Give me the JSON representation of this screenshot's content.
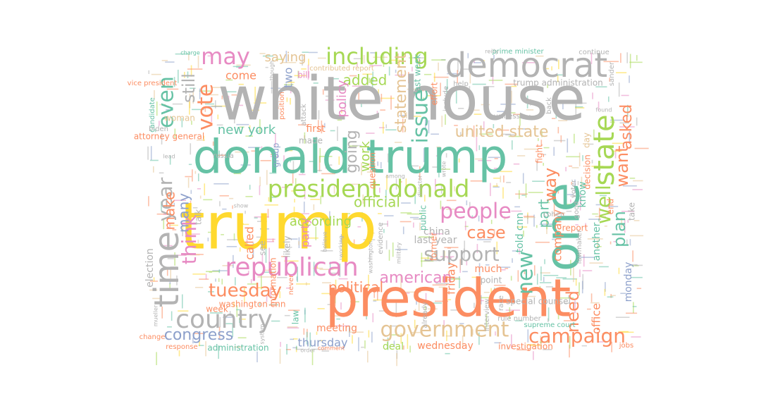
{
  "palette": {
    "green": "#66c2a5",
    "orange": "#fc8d62",
    "blue": "#8da0cb",
    "pink": "#e78ac3",
    "lime": "#a6d854",
    "yellow": "#ffd92f",
    "tan": "#e5c494",
    "gray": "#b3b3b3"
  },
  "words": [
    {
      "text": "white house",
      "color": "gray"
    },
    {
      "text": "donald trump",
      "color": "green"
    },
    {
      "text": "trump",
      "color": "yellow"
    },
    {
      "text": "president",
      "color": "orange"
    },
    {
      "text": "democrat",
      "color": "gray"
    },
    {
      "text": "one",
      "color": "green"
    },
    {
      "text": "president donald",
      "color": "lime"
    },
    {
      "text": "republican",
      "color": "pink"
    },
    {
      "text": "country",
      "color": "gray"
    },
    {
      "text": "time",
      "color": "gray"
    },
    {
      "text": "government",
      "color": "tan"
    },
    {
      "text": "campaign",
      "color": "orange"
    },
    {
      "text": "people",
      "color": "pink"
    },
    {
      "text": "state",
      "color": "lime"
    },
    {
      "text": "including",
      "color": "lime"
    },
    {
      "text": "may",
      "color": "pink"
    },
    {
      "text": "even",
      "color": "green"
    },
    {
      "text": "vote",
      "color": "orange"
    },
    {
      "text": "still",
      "color": "gray"
    },
    {
      "text": "think",
      "color": "pink"
    },
    {
      "text": "year",
      "color": "gray"
    },
    {
      "text": "make",
      "color": "orange"
    },
    {
      "text": "many",
      "color": "blue"
    },
    {
      "text": "tuesday",
      "color": "orange"
    },
    {
      "text": "congress",
      "color": "blue"
    },
    {
      "text": "support",
      "color": "gray"
    },
    {
      "text": "case",
      "color": "orange"
    },
    {
      "text": "american",
      "color": "pink"
    },
    {
      "text": "new",
      "color": "green"
    },
    {
      "text": "well",
      "color": "lime"
    },
    {
      "text": "want",
      "color": "orange"
    },
    {
      "text": "asked",
      "color": "orange"
    },
    {
      "text": "plan",
      "color": "green"
    },
    {
      "text": "united state",
      "color": "tan"
    },
    {
      "text": "issue",
      "color": "green"
    },
    {
      "text": "statement",
      "color": "tan"
    },
    {
      "text": "going",
      "color": "gray"
    },
    {
      "text": "work",
      "color": "lime"
    },
    {
      "text": "new york",
      "color": "green"
    },
    {
      "text": "saying",
      "color": "tan"
    },
    {
      "text": "added",
      "color": "lime"
    },
    {
      "text": "policy",
      "color": "pink"
    },
    {
      "text": "official",
      "color": "lime"
    },
    {
      "text": "according",
      "color": "lime"
    },
    {
      "text": "come",
      "color": "orange"
    },
    {
      "text": "two",
      "color": "blue"
    },
    {
      "text": "called",
      "color": "orange"
    },
    {
      "text": "party",
      "color": "pink"
    },
    {
      "text": "political",
      "color": "orange"
    },
    {
      "text": "thursday",
      "color": "blue"
    },
    {
      "text": "meeting",
      "color": "orange"
    },
    {
      "text": "deal",
      "color": "lime"
    },
    {
      "text": "wednesday",
      "color": "orange"
    },
    {
      "text": "administration",
      "color": "green"
    },
    {
      "text": "investigation",
      "color": "orange"
    },
    {
      "text": "way",
      "color": "orange"
    },
    {
      "text": "part",
      "color": "green"
    },
    {
      "text": "company",
      "color": "orange"
    },
    {
      "text": "told cnn",
      "color": "green"
    },
    {
      "text": "china",
      "color": "gray"
    },
    {
      "text": "last year",
      "color": "gray"
    },
    {
      "text": "friday",
      "color": "orange"
    },
    {
      "text": "need",
      "color": "orange"
    },
    {
      "text": "monday",
      "color": "blue"
    },
    {
      "text": "washington cnn",
      "color": "orange"
    },
    {
      "text": "election",
      "color": "gray"
    },
    {
      "text": "woman",
      "color": "tan"
    },
    {
      "text": "first",
      "color": "orange"
    },
    {
      "text": "made",
      "color": "gray"
    },
    {
      "text": "likely",
      "color": "gray"
    },
    {
      "text": "see",
      "color": "gray"
    },
    {
      "text": "week",
      "color": "orange"
    },
    {
      "text": "group",
      "color": "blue"
    },
    {
      "text": "trump administration",
      "color": "gray"
    },
    {
      "text": "continue",
      "color": "gray"
    },
    {
      "text": "prime minister",
      "color": "green"
    },
    {
      "text": "report",
      "color": "orange"
    },
    {
      "text": "decision",
      "color": "orange"
    },
    {
      "text": "special counsel",
      "color": "gray"
    },
    {
      "text": "office",
      "color": "orange"
    },
    {
      "text": "know",
      "color": "green"
    },
    {
      "text": "lawmaker",
      "color": "gray"
    },
    {
      "text": "another",
      "color": "green"
    },
    {
      "text": "day",
      "color": "tan"
    },
    {
      "text": "voter",
      "color": "gray"
    },
    {
      "text": "end",
      "color": "orange"
    },
    {
      "text": "take",
      "color": "gray"
    },
    {
      "text": "much",
      "color": "orange"
    },
    {
      "text": "point",
      "color": "gray"
    },
    {
      "text": "supreme court",
      "color": "green"
    },
    {
      "text": "rule number",
      "color": "gray"
    },
    {
      "text": "race",
      "color": "gray"
    },
    {
      "text": "attorney general",
      "color": "orange"
    },
    {
      "text": "biden",
      "color": "gray"
    },
    {
      "text": "candidate",
      "color": "green"
    },
    {
      "text": "talk",
      "color": "gray"
    },
    {
      "text": "last week",
      "color": "green"
    },
    {
      "text": "question",
      "color": "orange"
    },
    {
      "text": "effort",
      "color": "orange"
    },
    {
      "text": "business",
      "color": "gray"
    },
    {
      "text": "back",
      "color": "gray"
    },
    {
      "text": "cohen",
      "color": "gray"
    },
    {
      "text": "good",
      "color": "gray"
    },
    {
      "text": "bill",
      "color": "pink"
    },
    {
      "text": "include",
      "color": "gray"
    },
    {
      "text": "help",
      "color": "gray"
    },
    {
      "text": "found",
      "color": "gray"
    },
    {
      "text": "sander",
      "color": "gray"
    },
    {
      "text": "russia",
      "color": "gray"
    },
    {
      "text": "former",
      "color": "orange"
    },
    {
      "text": "fight",
      "color": "orange"
    },
    {
      "text": "law",
      "color": "green"
    },
    {
      "text": "information",
      "color": "orange"
    },
    {
      "text": "contributed report",
      "color": "tan"
    },
    {
      "text": "vice president",
      "color": "orange"
    },
    {
      "text": "change",
      "color": "orange"
    },
    {
      "text": "response",
      "color": "orange"
    },
    {
      "text": "order",
      "color": "gray"
    },
    {
      "text": "never",
      "color": "orange"
    },
    {
      "text": "public",
      "color": "green"
    },
    {
      "text": "jobs",
      "color": "orange"
    },
    {
      "text": "reilly",
      "color": "gray"
    },
    {
      "text": "charge",
      "color": "green"
    },
    {
      "text": "show",
      "color": "gray"
    },
    {
      "text": "among",
      "color": "gray"
    },
    {
      "text": "working",
      "color": "gray"
    },
    {
      "text": "believe",
      "color": "gray"
    },
    {
      "text": "wrote",
      "color": "gray"
    },
    {
      "text": "already",
      "color": "gray"
    },
    {
      "text": "interview",
      "color": "gray"
    },
    {
      "text": "evidence",
      "color": "gray"
    },
    {
      "text": "military",
      "color": "gray"
    },
    {
      "text": "lead",
      "color": "gray"
    },
    {
      "text": "though",
      "color": "gray"
    },
    {
      "text": "position",
      "color": "orange"
    },
    {
      "text": "attack",
      "color": "gray"
    },
    {
      "text": "system",
      "color": "gray"
    },
    {
      "text": "washington",
      "color": "gray"
    },
    {
      "text": "director",
      "color": "gray"
    },
    {
      "text": "comment",
      "color": "orange"
    },
    {
      "text": "mueller",
      "color": "gray"
    }
  ]
}
